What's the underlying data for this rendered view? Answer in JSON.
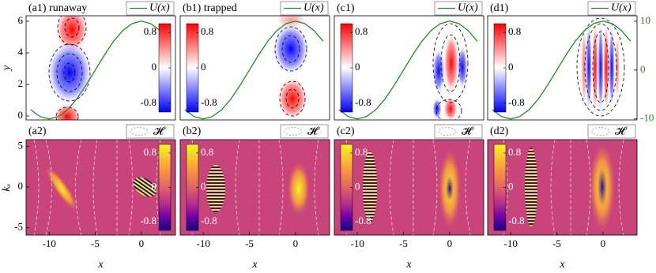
{
  "chart_data": [
    {
      "type": "line",
      "label": "(a1) runaway",
      "ylabel": "y",
      "x": [
        -12,
        -11,
        -10,
        -9,
        -8,
        -7,
        -6,
        -5,
        -4,
        -3,
        -2,
        -1,
        0,
        1,
        2,
        3
      ],
      "series": [
        {
          "name": "U(x)",
          "color": "#228b22",
          "axis": "y2",
          "values": [
            -8.1,
            -9.5,
            -10,
            -9.5,
            -8.1,
            -5.9,
            -3.1,
            0,
            3.1,
            5.9,
            8.1,
            9.5,
            10,
            9.5,
            8.1,
            5.9
          ]
        }
      ],
      "xlim": [
        -12.5,
        3.7
      ],
      "ylim": [
        -0.25,
        6.35
      ],
      "yticks": [
        0,
        2,
        4,
        6
      ],
      "y2lim": [
        -10.2,
        11.1
      ],
      "colorbar": {
        "cmap": "bwr",
        "side": "right",
        "lim": [
          -1,
          1
        ],
        "ticks": [
          -0.8,
          0,
          0.8
        ]
      }
    },
    {
      "type": "line",
      "label": "(b1) trapped",
      "x": [
        -12,
        -11,
        -10,
        -9,
        -8,
        -7,
        -6,
        -5,
        -4,
        -3,
        -2,
        -1,
        0,
        1,
        2,
        3
      ],
      "series": [
        {
          "name": "U(x)",
          "color": "#228b22",
          "axis": "y2",
          "values": [
            -8.1,
            -9.5,
            -10,
            -9.5,
            -8.1,
            -5.9,
            -3.1,
            0,
            3.1,
            5.9,
            8.1,
            9.5,
            10,
            9.5,
            8.1,
            5.9
          ]
        }
      ],
      "xlim": [
        -12.5,
        3.7
      ],
      "y2lim": [
        -10.2,
        11.1
      ],
      "colorbar": {
        "cmap": "bwr",
        "side": "left",
        "lim": [
          -1,
          1
        ],
        "ticks": [
          -0.8,
          0,
          0.8
        ]
      }
    },
    {
      "type": "line",
      "label": "(c1)",
      "x": [
        -12,
        -11,
        -10,
        -9,
        -8,
        -7,
        -6,
        -5,
        -4,
        -3,
        -2,
        -1,
        0,
        1,
        2,
        3
      ],
      "series": [
        {
          "name": "U(x)",
          "color": "#228b22",
          "axis": "y2",
          "values": [
            -8.1,
            -9.5,
            -10,
            -9.5,
            -8.1,
            -5.9,
            -3.1,
            0,
            3.1,
            5.9,
            8.1,
            9.5,
            10,
            9.5,
            8.1,
            5.9
          ]
        }
      ],
      "xlim": [
        -12.5,
        3.7
      ],
      "y2lim": [
        -10.2,
        11.1
      ],
      "colorbar": {
        "cmap": "bwr",
        "side": "left",
        "lim": [
          -1,
          1
        ],
        "ticks": [
          -0.8,
          0,
          0.8
        ]
      }
    },
    {
      "type": "line",
      "label": "(d1)",
      "x": [
        -12,
        -11,
        -10,
        -9,
        -8,
        -7,
        -6,
        -5,
        -4,
        -3,
        -2,
        -1,
        0,
        1,
        2,
        3
      ],
      "series": [
        {
          "name": "U(x)",
          "color": "#228b22",
          "axis": "y2",
          "values": [
            -8.1,
            -9.5,
            -10,
            -9.5,
            -8.1,
            -5.9,
            -3.1,
            0,
            3.1,
            5.9,
            8.1,
            9.5,
            10,
            9.5,
            8.1,
            5.9
          ]
        }
      ],
      "xlim": [
        -12.5,
        3.7
      ],
      "y2lim": [
        -10.2,
        11.1
      ],
      "y2ticks": [
        -10,
        0,
        10
      ],
      "colorbar": {
        "cmap": "bwr",
        "side": "left",
        "lim": [
          -1,
          1
        ],
        "ticks": [
          -0.8,
          0,
          0.8
        ]
      }
    },
    {
      "type": "image",
      "label": "(a2)",
      "legend": "𝓗",
      "ylabel": "kₓ",
      "xlabel": "x",
      "xlim": [
        -12.5,
        3.7
      ],
      "xticks": [
        -10,
        -5,
        0
      ],
      "ylim": [
        -5.9,
        5.8
      ],
      "yticks": [
        -5,
        0,
        5
      ],
      "colorbar": {
        "cmap": "plasma",
        "side": "right",
        "lim": [
          -1,
          1
        ],
        "ticks": [
          -0.8,
          0,
          0.8
        ]
      }
    },
    {
      "type": "image",
      "label": "(b2)",
      "legend": "𝓗",
      "xlabel": "x",
      "xlim": [
        -12.5,
        3.7
      ],
      "xticks": [
        -10,
        -5,
        0
      ],
      "colorbar": {
        "cmap": "plasma",
        "side": "left",
        "lim": [
          -1,
          1
        ],
        "ticks": [
          -0.8,
          0,
          0.8
        ]
      }
    },
    {
      "type": "image",
      "label": "(c2)",
      "legend": "𝓗",
      "xlabel": "x",
      "xlim": [
        -12.5,
        3.7
      ],
      "xticks": [
        -10,
        -5,
        0
      ],
      "colorbar": {
        "cmap": "plasma",
        "side": "left",
        "lim": [
          -1,
          1
        ],
        "ticks": [
          -0.8,
          0,
          0.8
        ]
      }
    },
    {
      "type": "image",
      "label": "(d2)",
      "legend": "𝓗",
      "xlabel": "x",
      "xlim": [
        -12.5,
        3.7
      ],
      "xticks": [
        -10,
        -5,
        0
      ],
      "colorbar": {
        "cmap": "plasma",
        "side": "left",
        "lim": [
          -1,
          1
        ],
        "ticks": [
          -0.8,
          0,
          0.8
        ]
      }
    }
  ]
}
